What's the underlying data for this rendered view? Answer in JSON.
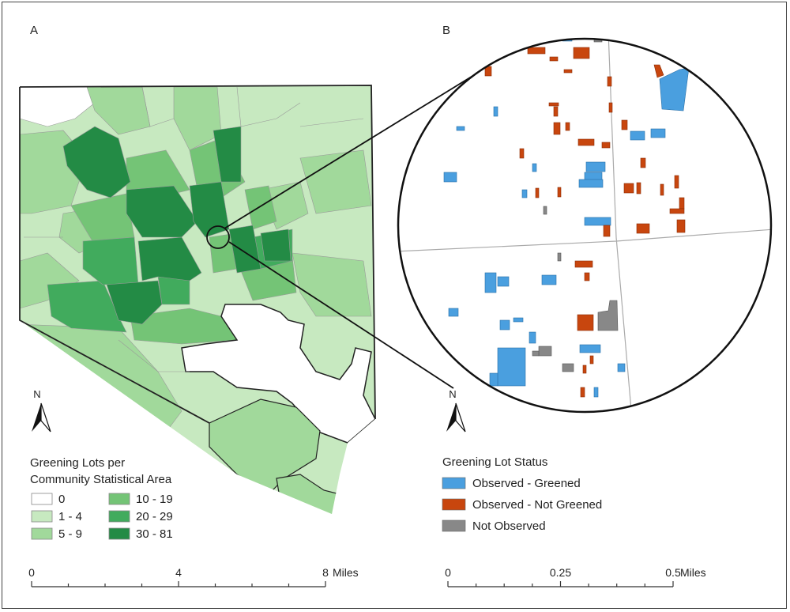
{
  "panel_a": {
    "label": "A",
    "legend": {
      "title_line1": "Greening Lots per",
      "title_line2": "Community Statistical Area",
      "classes": [
        {
          "label": "0",
          "color": "#ffffff"
        },
        {
          "label": "1 - 4",
          "color": "#c7e9c0"
        },
        {
          "label": "5 - 9",
          "color": "#a1d99b"
        },
        {
          "label": "10 - 19",
          "color": "#74c476"
        },
        {
          "label": "20 - 29",
          "color": "#41ab5d"
        },
        {
          "label": "30 - 81",
          "color": "#238b45"
        }
      ]
    },
    "north_label": "N",
    "scale": {
      "ticks": [
        "0",
        "4",
        "8"
      ],
      "unit": "Miles"
    }
  },
  "panel_b": {
    "label": "B",
    "legend": {
      "title": "Greening Lot Status",
      "classes": [
        {
          "label": "Observed - Greened",
          "color": "#4a9fdf"
        },
        {
          "label": "Observed - Not Greened",
          "color": "#c8460e"
        },
        {
          "label": "Not Observed",
          "color": "#888888"
        }
      ]
    },
    "north_label": "N",
    "scale": {
      "ticks": [
        "0",
        "0.25",
        "0.5"
      ],
      "unit": "Miles"
    }
  }
}
